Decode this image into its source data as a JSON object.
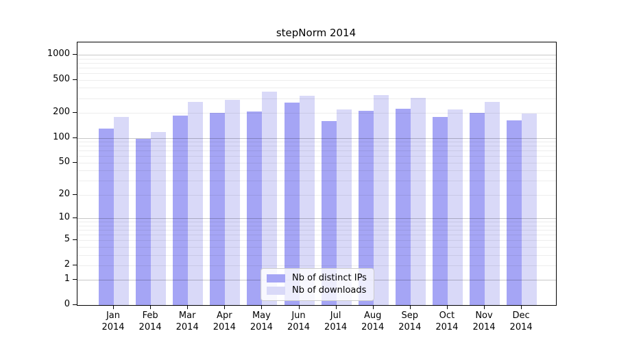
{
  "chart_data": {
    "type": "bar",
    "title": "stepNorm 2014",
    "categories": [
      "Jan 2014",
      "Feb 2014",
      "Mar 2014",
      "Apr 2014",
      "May 2014",
      "Jun 2014",
      "Jul 2014",
      "Aug 2014",
      "Sep 2014",
      "Oct 2014",
      "Nov 2014",
      "Dec 2014"
    ],
    "series": [
      {
        "name": "Nb of distinct IPs",
        "color": "#a5a5f5",
        "values": [
          130,
          97,
          184,
          200,
          208,
          265,
          159,
          210,
          224,
          178,
          199,
          163
        ]
      },
      {
        "name": "Nb of downloads",
        "color": "#d9d9f8",
        "values": [
          180,
          117,
          270,
          287,
          360,
          320,
          220,
          325,
          303,
          222,
          270,
          196
        ]
      }
    ],
    "xlabel": "",
    "ylabel": "",
    "yticks": [
      0,
      1,
      2,
      5,
      10,
      20,
      50,
      100,
      200,
      500,
      1000
    ],
    "minor_gridlines": [
      3,
      4,
      6,
      7,
      8,
      9,
      30,
      40,
      60,
      70,
      80,
      90,
      300,
      400,
      600,
      700,
      800,
      900
    ],
    "decade_gridlines": [
      1,
      10,
      100,
      1000
    ],
    "scale": "log1p",
    "ylim": [
      0,
      1400
    ],
    "grid": true,
    "grid_above_bars": true,
    "legend_position": "lower-center",
    "colors": {
      "distinct_ips": "#a5a5f5",
      "downloads": "#d9d9f8",
      "spine": "#000000",
      "background": "#ffffff"
    }
  }
}
